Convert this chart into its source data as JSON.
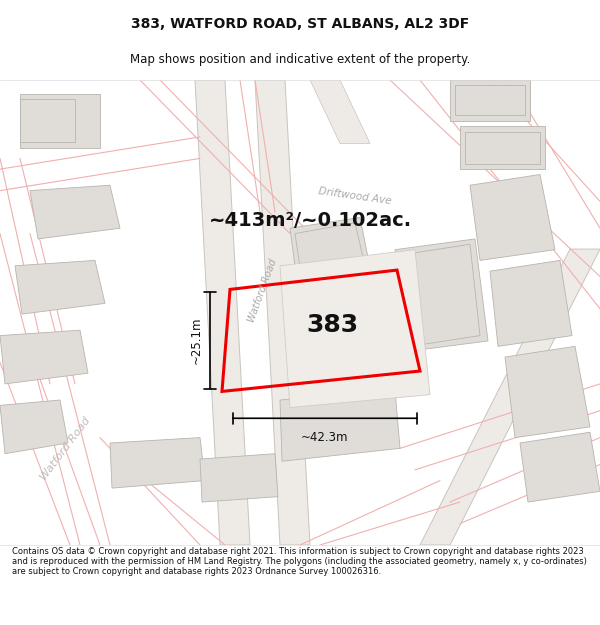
{
  "title": "383, WATFORD ROAD, ST ALBANS, AL2 3DF",
  "subtitle": "Map shows position and indicative extent of the property.",
  "footer": "Contains OS data © Crown copyright and database right 2021. This information is subject to Crown copyright and database rights 2023 and is reproduced with the permission of HM Land Registry. The polygons (including the associated geometry, namely x, y co-ordinates) are subject to Crown copyright and database rights 2023 Ordnance Survey 100026316.",
  "area_text": "~413m²/~0.102ac.",
  "label_383": "383",
  "dim_width": "~42.3m",
  "dim_height": "~25.1m",
  "road_label_watford": "Watford Road",
  "road_label_driftwood": "Driftwood Ave",
  "map_bg": "#f9f8f6",
  "red_outline": "#ee0000",
  "bld_fill": "#e0ddd8",
  "bld_edge": "#b8b4ae",
  "road_fill": "#f9f8f6",
  "pink_road": "#f0b0b0",
  "gray_road_fill": "#eeebe6",
  "gray_road_edge": "#c8c4be",
  "title_fontsize": 10,
  "subtitle_fontsize": 8.5,
  "footer_fontsize": 6.0
}
